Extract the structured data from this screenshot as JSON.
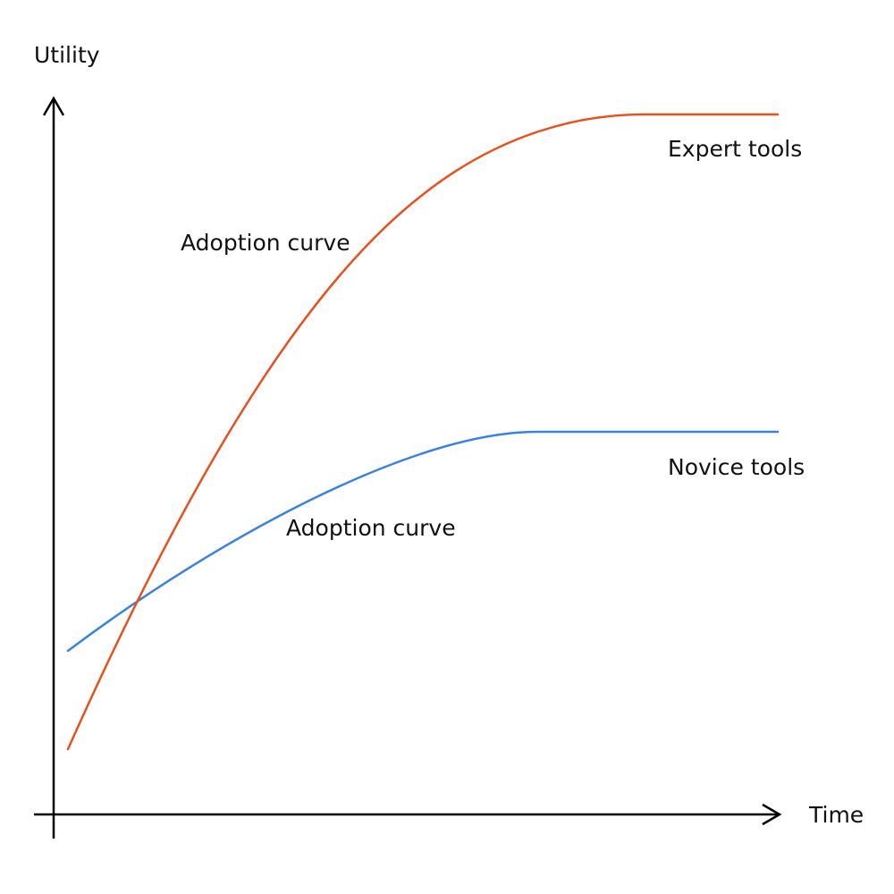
{
  "colors": {
    "expert": "#e8501e",
    "novice": "#3b82e0",
    "axis": "#000000"
  },
  "axes": {
    "y_label": "Utility",
    "x_label": "Time"
  },
  "curves": {
    "expert": {
      "name": "Expert tools",
      "curve_label": "Adoption curve"
    },
    "novice": {
      "name": "Novice tools",
      "curve_label": "Adoption curve"
    }
  }
}
